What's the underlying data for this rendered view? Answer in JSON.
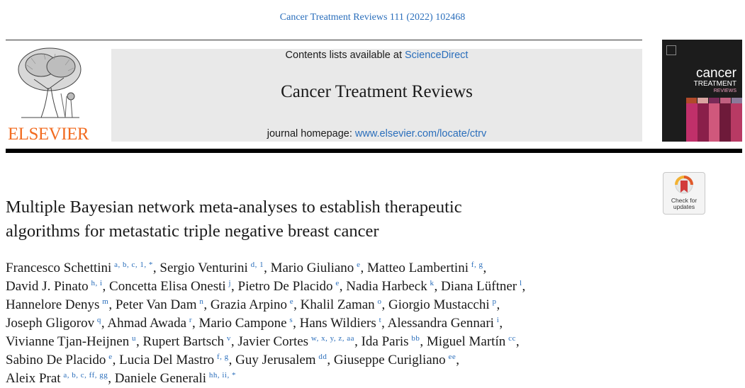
{
  "citation": "Cancer Treatment Reviews 111 (2022) 102468",
  "publisher": {
    "name": "ELSEVIER"
  },
  "masthead": {
    "contents_prefix": "Contents lists available at ",
    "contents_link": "ScienceDirect",
    "journal_title": "Cancer Treatment Reviews",
    "homepage_prefix": "journal homepage: ",
    "homepage_link": "www.elsevier.com/locate/ctrv"
  },
  "cover": {
    "line1": "cancer",
    "line2": "TREATMENT",
    "line3": "REVIEWS"
  },
  "check_updates": {
    "line1": "Check for",
    "line2": "updates"
  },
  "article_title_lines": [
    "Multiple Bayesian network meta-analyses to establish therapeutic",
    "algorithms for metastatic triple negative breast cancer"
  ],
  "author_lines": [
    [
      {
        "name": "Francesco Schettini",
        "aff": "a, b, c, 1, *"
      },
      {
        "name": "Sergio Venturini",
        "aff": "d, 1"
      },
      {
        "name": "Mario Giuliano",
        "aff": "e"
      },
      {
        "name": "Matteo Lambertini",
        "aff": "f, g"
      }
    ],
    [
      {
        "name": "David J. Pinato",
        "aff": "h, i"
      },
      {
        "name": "Concetta Elisa Onesti",
        "aff": "j"
      },
      {
        "name": "Pietro De Placido",
        "aff": "e"
      },
      {
        "name": "Nadia Harbeck",
        "aff": "k"
      },
      {
        "name": "Diana Lüftner",
        "aff": "l"
      }
    ],
    [
      {
        "name": "Hannelore Denys",
        "aff": "m"
      },
      {
        "name": "Peter Van Dam",
        "aff": "n"
      },
      {
        "name": "Grazia Arpino",
        "aff": "e"
      },
      {
        "name": "Khalil Zaman",
        "aff": "o"
      },
      {
        "name": "Giorgio Mustacchi",
        "aff": "p"
      }
    ],
    [
      {
        "name": "Joseph Gligorov",
        "aff": "q"
      },
      {
        "name": "Ahmad Awada",
        "aff": "r"
      },
      {
        "name": "Mario Campone",
        "aff": "s"
      },
      {
        "name": "Hans Wildiers",
        "aff": "t"
      },
      {
        "name": "Alessandra Gennari",
        "aff": "i"
      }
    ],
    [
      {
        "name": "Vivianne Tjan-Heijnen",
        "aff": "u"
      },
      {
        "name": "Rupert Bartsch",
        "aff": "v"
      },
      {
        "name": "Javier Cortes",
        "aff": "w, x, y, z, aa"
      },
      {
        "name": "Ida Paris",
        "aff": "bb"
      },
      {
        "name": "Miguel Martín",
        "aff": "cc"
      }
    ],
    [
      {
        "name": "Sabino De Placido",
        "aff": "e"
      },
      {
        "name": "Lucia Del Mastro",
        "aff": "f, g"
      },
      {
        "name": "Guy Jerusalem",
        "aff": "dd"
      },
      {
        "name": "Giuseppe Curigliano",
        "aff": "ee"
      }
    ],
    [
      {
        "name": "Aleix Prat",
        "aff": "a, b, c, ff, gg"
      },
      {
        "name": "Daniele Generali",
        "aff": "hh, ii, *"
      }
    ]
  ],
  "colors": {
    "link": "#2a6ebb",
    "publisher_orange": "#f26c21",
    "masthead_bg": "#e9e9e9"
  },
  "icons": [
    "elsevier-tree-logo",
    "check-for-updates-icon"
  ]
}
